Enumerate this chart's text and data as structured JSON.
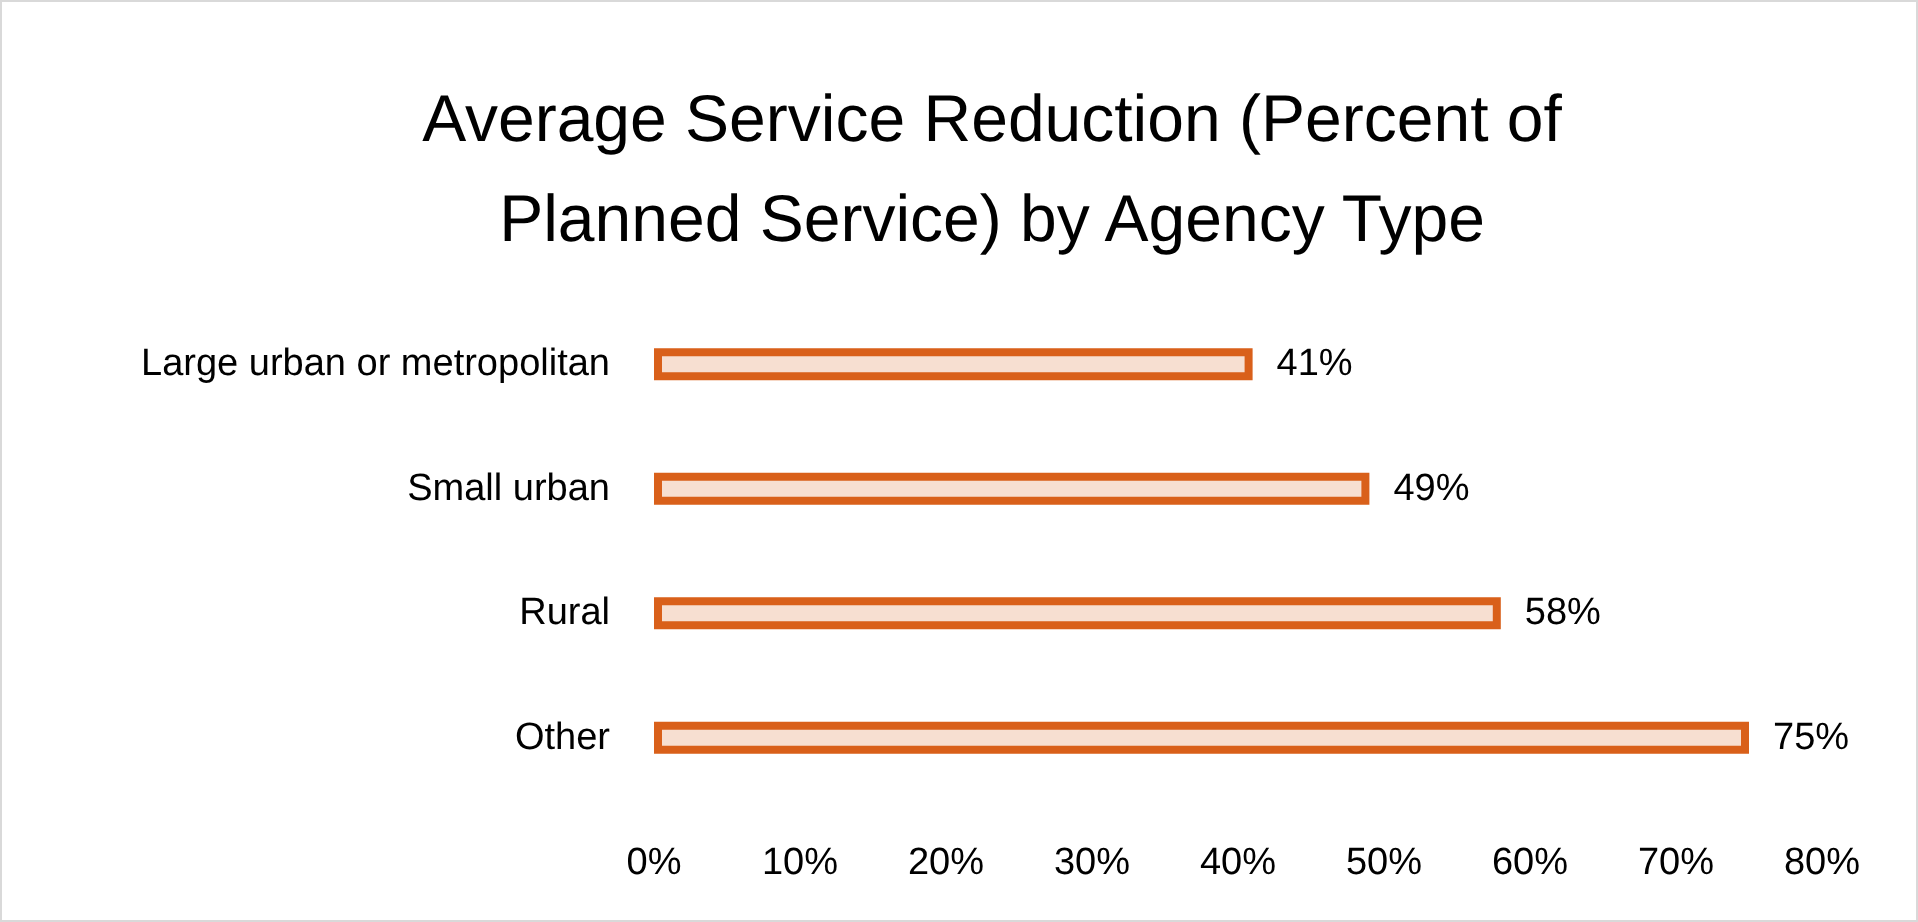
{
  "chart_data": {
    "type": "bar",
    "orientation": "horizontal",
    "title": "Average Service Reduction (Percent of\nPlanned Service) by Agency Type",
    "categories": [
      "Large urban or metropolitan",
      "Small urban",
      "Rural",
      "Other"
    ],
    "values": [
      41,
      49,
      58,
      75
    ],
    "color": "#d9601a",
    "value_labels": [
      "41%",
      "49%",
      "58%",
      "75%"
    ],
    "xlim": [
      0,
      80
    ],
    "xticks": [
      {
        "value": 0,
        "label": "0%"
      },
      {
        "value": 10,
        "label": "10%"
      },
      {
        "value": 20,
        "label": "20%"
      },
      {
        "value": 30,
        "label": "30%"
      },
      {
        "value": 40,
        "label": "40%"
      },
      {
        "value": 50,
        "label": "50%"
      },
      {
        "value": 60,
        "label": "60%"
      },
      {
        "value": 70,
        "label": "70%"
      },
      {
        "value": 80,
        "label": "80%"
      }
    ],
    "grid": false
  }
}
